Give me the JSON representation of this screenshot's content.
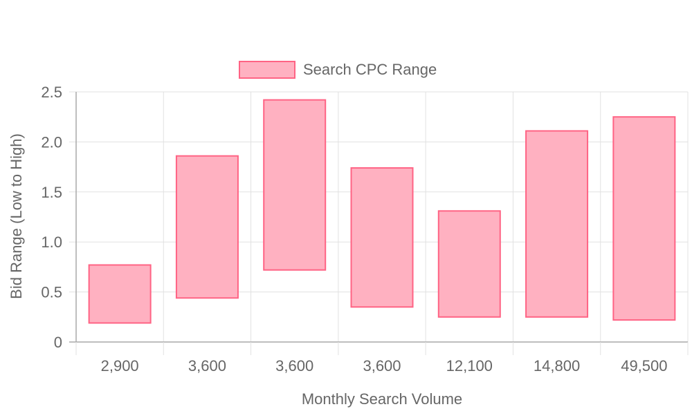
{
  "chart_data": {
    "type": "bar",
    "subtype": "floating-range",
    "categories": [
      "2,900",
      "3,600",
      "3,600",
      "3,600",
      "12,100",
      "14,800",
      "49,500"
    ],
    "series": [
      {
        "name": "Search CPC Range",
        "ranges": [
          [
            0.19,
            0.77
          ],
          [
            0.44,
            1.86
          ],
          [
            0.72,
            2.42
          ],
          [
            0.35,
            1.74
          ],
          [
            0.25,
            1.31
          ],
          [
            0.25,
            2.11
          ],
          [
            0.22,
            2.25
          ]
        ],
        "fill_color": "#ffb1c1",
        "border_color": "#ff6384"
      }
    ],
    "title": "",
    "xlabel": "Monthly Search Volume",
    "ylabel": "Bid Range (Low to High)",
    "ylim": [
      0,
      2.5
    ],
    "yticks": [
      "0",
      "0.5",
      "1.0",
      "1.5",
      "2.0",
      "2.5"
    ],
    "ytick_values": [
      0,
      0.5,
      1.0,
      1.5,
      2.0,
      2.5
    ],
    "grid": true,
    "legend_position": "top-center"
  }
}
